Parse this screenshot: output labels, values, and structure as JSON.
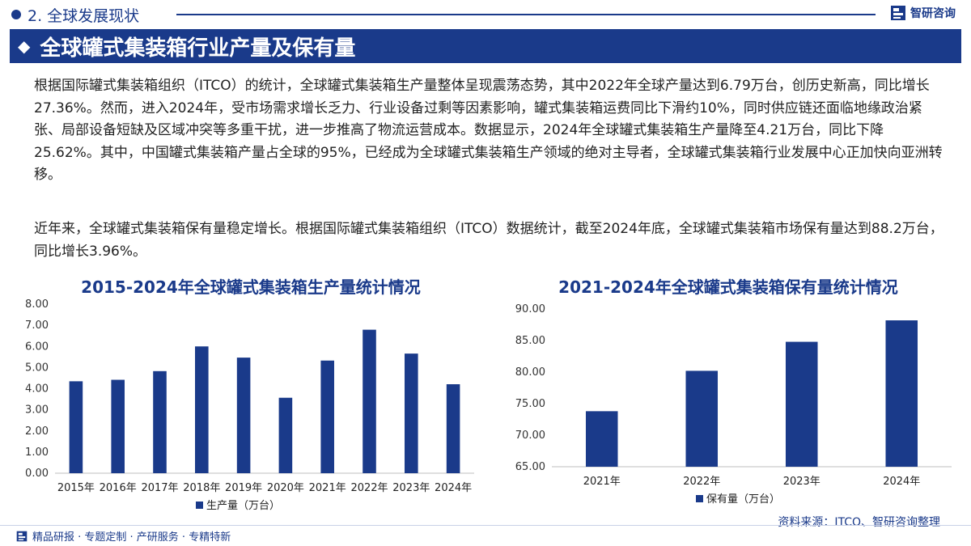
{
  "header": {
    "section": "2. 全球发展现状",
    "brand": "智研咨询",
    "banner_title": "全球罐式集装箱行业产量及保有量"
  },
  "body": {
    "para1": "根据国际罐式集装箱组织（ITCO）的统计，全球罐式集装箱生产量整体呈现震荡态势，其中2022年全球产量达到6.79万台，创历史新高，同比增长27.36%。然而，进入2024年，受市场需求增长乏力、行业设备过剩等因素影响，罐式集装箱运费同比下滑约10%，同时供应链还面临地缘政治紧张、局部设备短缺及区域冲突等多重干扰，进一步推高了物流运营成本。数据显示，2024年全球罐式集装箱生产量降至4.21万台，同比下降25.62%。其中，中国罐式集装箱产量占全球的95%，已经成为全球罐式集装箱生产领域的绝对主导者，全球罐式集装箱行业发展中心正加快向亚洲转移。",
    "para2": "近年来，全球罐式集装箱保有量稳定增长。根据国际罐式集装箱组织（ITCO）数据统计，截至2024年底，全球罐式集装箱市场保有量达到88.2万台，同比增长3.96%。"
  },
  "colors": {
    "primary": "#1a3a8a",
    "bar": "#1a3a8a"
  },
  "chart_data": [
    {
      "type": "bar",
      "title": "2015-2024年全球罐式集装箱生产量统计情况",
      "categories": [
        "2015年",
        "2016年",
        "2017年",
        "2018年",
        "2019年",
        "2020年",
        "2021年",
        "2022年",
        "2023年",
        "2024年"
      ],
      "series": [
        {
          "name": "生产量（万台）",
          "values": [
            4.35,
            4.42,
            4.83,
            6.0,
            5.47,
            3.57,
            5.33,
            6.79,
            5.66,
            4.21
          ]
        }
      ],
      "ylim": [
        0,
        8
      ],
      "yticks": [
        "0.00",
        "1.00",
        "2.00",
        "3.00",
        "4.00",
        "5.00",
        "6.00",
        "7.00",
        "8.00"
      ],
      "legend": "bottom",
      "grid": false
    },
    {
      "type": "bar",
      "title": "2021-2024年全球罐式集装箱保有量统计情况",
      "categories": [
        "2021年",
        "2022年",
        "2023年",
        "2024年"
      ],
      "series": [
        {
          "name": "保有量（万台）",
          "values": [
            73.8,
            80.2,
            84.8,
            88.2
          ]
        }
      ],
      "ylim": [
        65,
        90
      ],
      "yticks": [
        "65.00",
        "70.00",
        "75.00",
        "80.00",
        "85.00",
        "90.00"
      ],
      "legend": "bottom",
      "grid": false
    }
  ],
  "footer": {
    "source": "资料来源：ITCO、智研咨询整理",
    "tagline": "精品研报 · 专题定制 · 产研服务 · 专精特新"
  }
}
